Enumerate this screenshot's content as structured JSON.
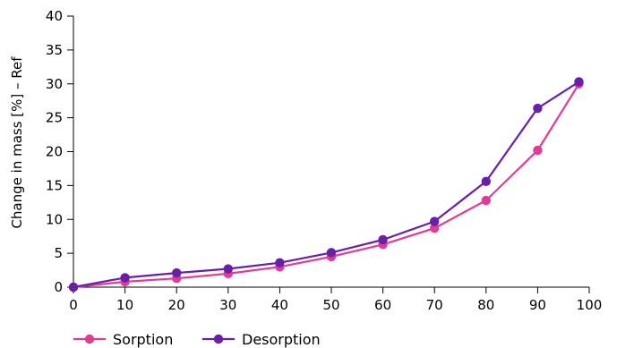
{
  "chart_data": {
    "type": "line",
    "title": "",
    "xlabel": "",
    "ylabel": "Change in mass [%] – Ref",
    "xlim": [
      0,
      100
    ],
    "ylim": [
      0,
      40
    ],
    "x_ticks": [
      "0",
      "10",
      "20",
      "30",
      "40",
      "50",
      "60",
      "70",
      "80",
      "90",
      "100"
    ],
    "y_ticks": [
      "0",
      "5",
      "10",
      "15",
      "20",
      "25",
      "30",
      "35",
      "40"
    ],
    "grid": false,
    "legend_position": "bottom-left",
    "series": [
      {
        "name": "Sorption",
        "color": "#e03c96",
        "x": [
          0,
          10,
          20,
          30,
          40,
          50,
          60,
          70,
          80,
          90,
          98
        ],
        "values": [
          0,
          0.8,
          1.3,
          2.0,
          3.0,
          4.5,
          6.3,
          8.7,
          12.8,
          20.2,
          30.0
        ]
      },
      {
        "name": "Desorption",
        "color": "#6a1fa8",
        "x": [
          0,
          10,
          20,
          30,
          40,
          50,
          60,
          70,
          80,
          90,
          98
        ],
        "values": [
          0,
          1.4,
          2.1,
          2.7,
          3.6,
          5.1,
          7.0,
          9.7,
          15.6,
          26.4,
          30.3
        ]
      }
    ]
  }
}
